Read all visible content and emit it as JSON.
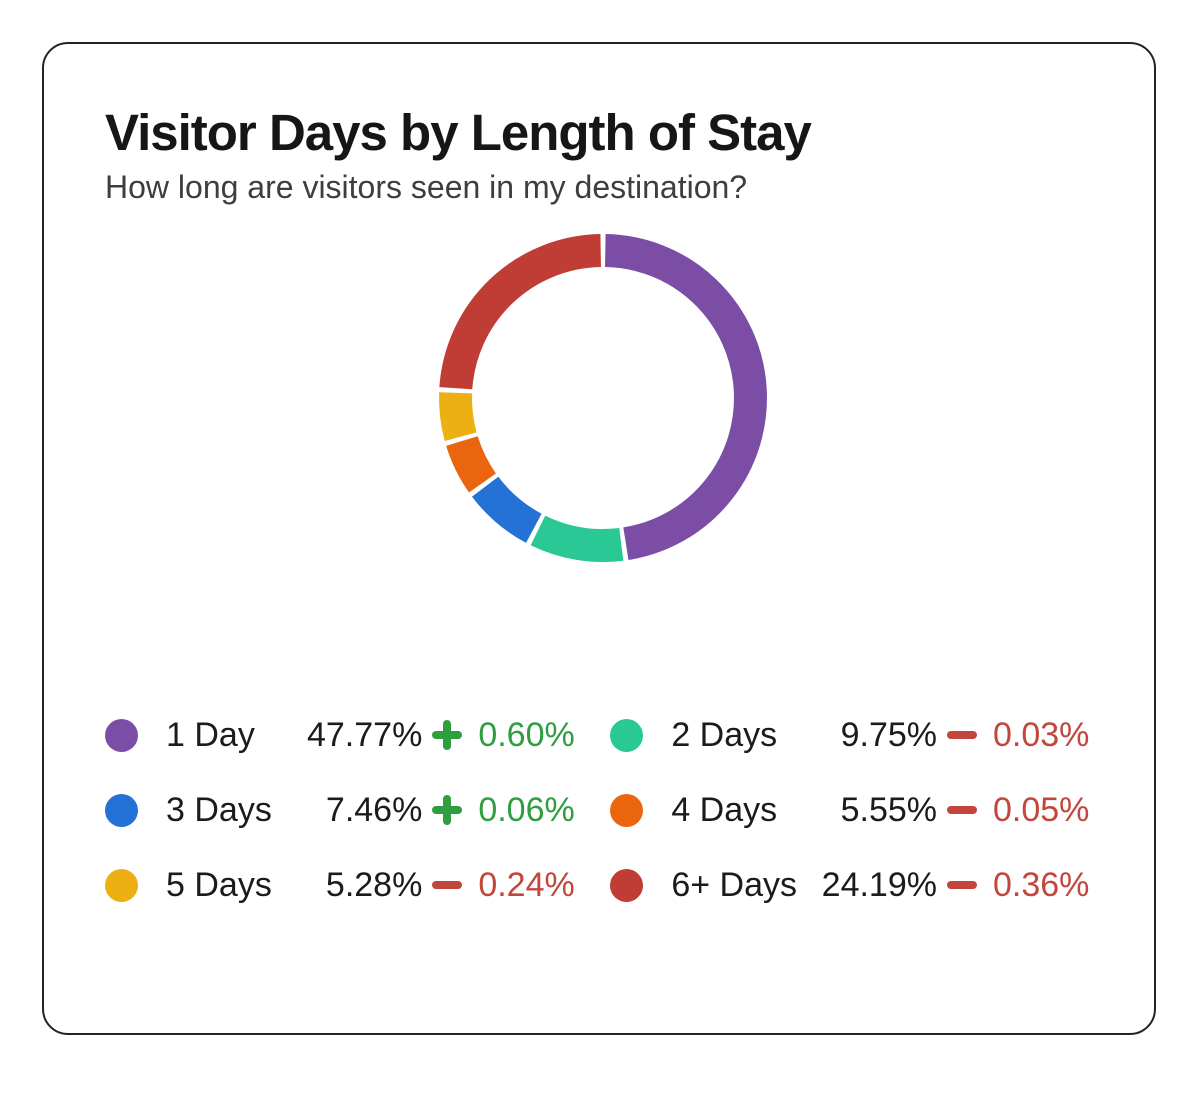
{
  "header": {
    "title": "Visitor Days by Length of Stay",
    "subtitle": "How long are visitors seen in my destination?"
  },
  "chart_data": {
    "type": "pie",
    "variant": "donut",
    "title": "Visitor Days by Length of Stay",
    "subtitle": "How long are visitors seen in my destination?",
    "categories": [
      "1 Day",
      "2 Days",
      "3 Days",
      "4 Days",
      "5 Days",
      "6+ Days"
    ],
    "values": [
      47.77,
      9.75,
      7.46,
      5.55,
      5.28,
      24.19
    ],
    "changes": [
      0.6,
      -0.03,
      0.06,
      -0.05,
      -0.24,
      -0.36
    ],
    "colors": [
      "#7C4DA5",
      "#2AC894",
      "#2472D5",
      "#EA650E",
      "#ECB012",
      "#BF3D35"
    ],
    "start_angle_deg": 0,
    "direction": "clockwise",
    "legend_position": "bottom",
    "units": "%"
  },
  "legend": {
    "items": [
      {
        "label": "1 Day",
        "value_text": "47.77%",
        "change_text": "0.60%",
        "direction": "up"
      },
      {
        "label": "2 Days",
        "value_text": "9.75%",
        "change_text": "0.03%",
        "direction": "down"
      },
      {
        "label": "3 Days",
        "value_text": "7.46%",
        "change_text": "0.06%",
        "direction": "up"
      },
      {
        "label": "4 Days",
        "value_text": "5.55%",
        "change_text": "0.05%",
        "direction": "down"
      },
      {
        "label": "5 Days",
        "value_text": "5.28%",
        "change_text": "0.24%",
        "direction": "down"
      },
      {
        "label": "6+ Days",
        "value_text": "24.19%",
        "change_text": "0.36%",
        "direction": "down"
      }
    ]
  },
  "colors": {
    "positive": "#2E9E3E",
    "negative": "#C2463C",
    "card_border": "#20242E",
    "title_text": "#161616",
    "subtitle_text": "#3E3E3E"
  }
}
